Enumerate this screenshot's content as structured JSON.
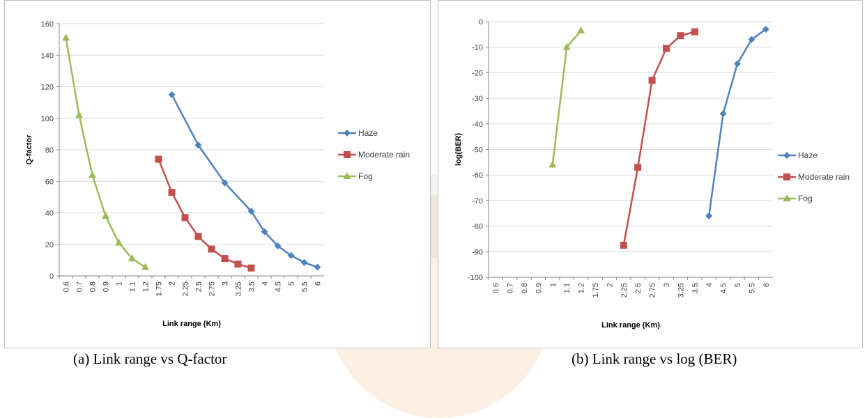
{
  "captions": {
    "a": "(a) Link range vs Q-factor",
    "b": "(b) Link range vs log (BER)"
  },
  "colors": {
    "haze": "#4f81bd",
    "moderate_rain": "#c0504d",
    "fog": "#9bbb59",
    "grid": "#d9d9d9",
    "axis": "#868686"
  },
  "chart_data": [
    {
      "type": "line",
      "title": "",
      "xlabel": "Link range (Km)",
      "ylabel": "Q-factor",
      "categories": [
        "0.6",
        "0.7",
        "0.8",
        "0.9",
        "1",
        "1.1",
        "1.2",
        "1.75",
        "2",
        "2.25",
        "2.5",
        "2.75",
        "3",
        "3.25",
        "3.5",
        "4",
        "4.5",
        "5",
        "5.5",
        "6"
      ],
      "ylim": [
        0,
        160
      ],
      "yticks": [
        0,
        20,
        40,
        60,
        80,
        100,
        120,
        140,
        160
      ],
      "grid": true,
      "legend_position": "right",
      "series": [
        {
          "name": "Haze",
          "marker": "diamond",
          "color": "#4f81bd",
          "values": [
            null,
            null,
            null,
            null,
            null,
            null,
            null,
            null,
            115,
            null,
            83,
            null,
            59,
            null,
            41,
            28,
            19,
            13,
            8.5,
            5.5
          ]
        },
        {
          "name": "Moderate rain",
          "marker": "square",
          "color": "#c0504d",
          "values": [
            null,
            null,
            null,
            null,
            null,
            null,
            null,
            74,
            53,
            37,
            25,
            17,
            11,
            7.5,
            5,
            null,
            null,
            null,
            null,
            null
          ]
        },
        {
          "name": "Fog",
          "marker": "triangle",
          "color": "#9bbb59",
          "values": [
            151,
            102,
            64,
            38,
            21,
            11,
            5.5,
            null,
            null,
            null,
            null,
            null,
            null,
            null,
            null,
            null,
            null,
            null,
            null,
            null
          ]
        }
      ]
    },
    {
      "type": "line",
      "title": "",
      "xlabel": "Link range (Km)",
      "ylabel": "log(BER)",
      "categories": [
        "0.6",
        "0.7",
        "0.8",
        "0.9",
        "1",
        "1.1",
        "1.2",
        "1.75",
        "2",
        "2.25",
        "2.5",
        "2.75",
        "3",
        "3.25",
        "3.5",
        "4",
        "4.5",
        "5",
        "5.5",
        "6"
      ],
      "ylim": [
        -100,
        0
      ],
      "yticks": [
        0,
        -10,
        -20,
        -30,
        -40,
        -50,
        -60,
        -70,
        -80,
        -90,
        -100
      ],
      "grid": true,
      "legend_position": "right",
      "series": [
        {
          "name": "Haze",
          "marker": "diamond",
          "color": "#4f81bd",
          "values": [
            null,
            null,
            null,
            null,
            null,
            null,
            null,
            null,
            null,
            null,
            null,
            null,
            null,
            null,
            null,
            -76,
            -36,
            -16.5,
            -7,
            -3
          ]
        },
        {
          "name": "Moderate rain",
          "marker": "square",
          "color": "#c0504d",
          "values": [
            null,
            null,
            null,
            null,
            null,
            null,
            null,
            null,
            null,
            -87.5,
            -57,
            -23,
            -10.5,
            -5.5,
            -4,
            null,
            null,
            null,
            null,
            null
          ]
        },
        {
          "name": "Fog",
          "marker": "triangle",
          "color": "#9bbb59",
          "values": [
            null,
            null,
            null,
            null,
            -56,
            -10,
            -3.5,
            null,
            null,
            null,
            null,
            null,
            null,
            null,
            null,
            null,
            null,
            null,
            null,
            null
          ]
        }
      ]
    }
  ]
}
